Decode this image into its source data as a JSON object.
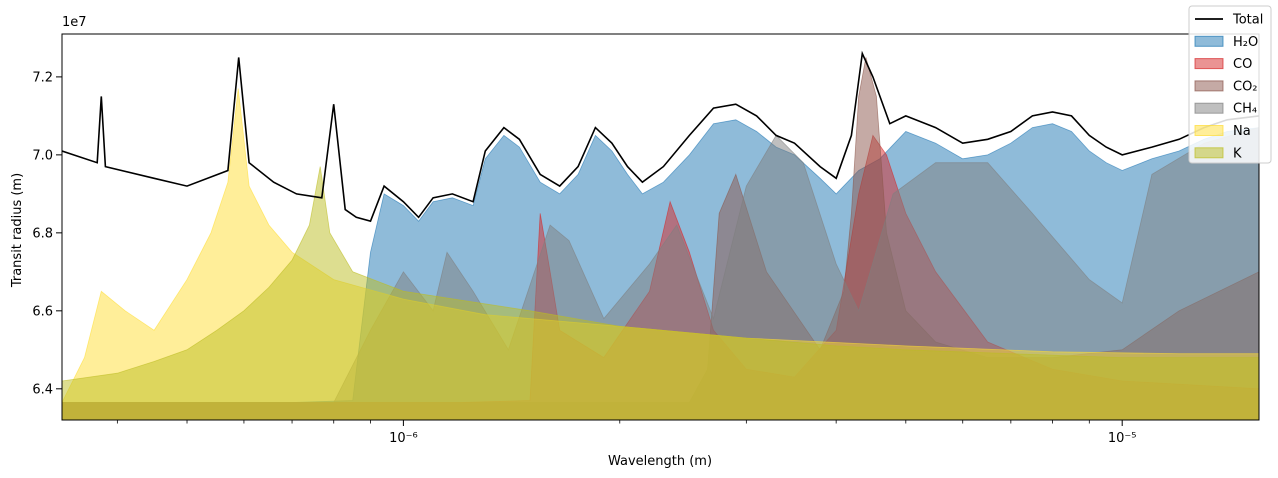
{
  "chart_data": {
    "type": "area",
    "xlabel": "Wavelength (m)",
    "ylabel": "Transit radius (m)",
    "y_offset_text": "1e7",
    "xscale": "log",
    "xlim": [
      3.35e-07,
      1.55e-05
    ],
    "ylim": [
      63200000,
      73100000
    ],
    "x_ticks": [
      1e-06,
      1e-05
    ],
    "x_tick_labels": [
      "10⁻⁶",
      "10⁻⁵"
    ],
    "y_ticks": [
      64000000,
      66000000,
      68000000,
      70000000,
      72000000
    ],
    "y_tick_labels": [
      "6.4",
      "6.6",
      "6.8",
      "7.0",
      "7.2"
    ],
    "grid": false,
    "legend_position": "top-right",
    "series": [
      {
        "name": "Total",
        "kind": "line",
        "color": "#000000",
        "x": [
          3.35e-07,
          3.75e-07,
          3.8e-07,
          3.85e-07,
          4.5e-07,
          5e-07,
          5.7e-07,
          5.9e-07,
          6.1e-07,
          6.6e-07,
          7.1e-07,
          7.7e-07,
          8e-07,
          8.3e-07,
          8.6e-07,
          9e-07,
          9.4e-07,
          1e-06,
          1.05e-06,
          1.1e-06,
          1.17e-06,
          1.25e-06,
          1.3e-06,
          1.38e-06,
          1.45e-06,
          1.55e-06,
          1.65e-06,
          1.75e-06,
          1.85e-06,
          1.95e-06,
          2.05e-06,
          2.15e-06,
          2.3e-06,
          2.5e-06,
          2.7e-06,
          2.9e-06,
          3.1e-06,
          3.3e-06,
          3.5e-06,
          3.8e-06,
          4e-06,
          4.2e-06,
          4.35e-06,
          4.5e-06,
          4.75e-06,
          5e-06,
          5.5e-06,
          6e-06,
          6.5e-06,
          7e-06,
          7.5e-06,
          8e-06,
          8.5e-06,
          9e-06,
          9.5e-06,
          1e-05,
          1.1e-05,
          1.2e-05,
          1.3e-05,
          1.4e-05,
          1.55e-05
        ],
        "y": [
          70100000,
          69800000,
          71500000,
          69700000,
          69400000,
          69200000,
          69600000,
          72500000,
          69800000,
          69300000,
          69000000,
          68900000,
          71300000,
          68600000,
          68400000,
          68300000,
          69200000,
          68800000,
          68400000,
          68900000,
          69000000,
          68800000,
          70100000,
          70700000,
          70400000,
          69500000,
          69200000,
          69700000,
          70700000,
          70300000,
          69700000,
          69300000,
          69700000,
          70500000,
          71200000,
          71300000,
          71000000,
          70500000,
          70300000,
          69700000,
          69400000,
          70500000,
          72600000,
          72000000,
          70800000,
          71000000,
          70700000,
          70300000,
          70400000,
          70600000,
          71000000,
          71100000,
          71000000,
          70500000,
          70200000,
          70000000,
          70200000,
          70400000,
          70700000,
          70900000,
          71000000
        ]
      },
      {
        "name": "H₂O",
        "kind": "area",
        "color": "#1f77b4",
        "x": [
          3.35e-07,
          5e-07,
          7e-07,
          8.5e-07,
          9e-07,
          9.4e-07,
          1e-06,
          1.05e-06,
          1.1e-06,
          1.17e-06,
          1.25e-06,
          1.3e-06,
          1.38e-06,
          1.45e-06,
          1.55e-06,
          1.65e-06,
          1.75e-06,
          1.85e-06,
          1.95e-06,
          2.05e-06,
          2.15e-06,
          2.3e-06,
          2.5e-06,
          2.7e-06,
          2.9e-06,
          3.1e-06,
          3.3e-06,
          3.5e-06,
          3.8e-06,
          4e-06,
          4.3e-06,
          4.6e-06,
          5e-06,
          5.5e-06,
          6e-06,
          6.5e-06,
          7e-06,
          7.5e-06,
          8e-06,
          8.5e-06,
          9e-06,
          9.5e-06,
          1e-05,
          1.1e-05,
          1.2e-05,
          1.3e-05,
          1.4e-05,
          1.55e-05
        ],
        "y": [
          63650000,
          63650000,
          63650000,
          63700000,
          67500000,
          69000000,
          68700000,
          68300000,
          68800000,
          68900000,
          68700000,
          69900000,
          70500000,
          70200000,
          69300000,
          69000000,
          69500000,
          70500000,
          70100000,
          69500000,
          69000000,
          69300000,
          70000000,
          70800000,
          70900000,
          70600000,
          70200000,
          70000000,
          69400000,
          69000000,
          69600000,
          69900000,
          70600000,
          70300000,
          69900000,
          70000000,
          70300000,
          70700000,
          70800000,
          70600000,
          70100000,
          69800000,
          69600000,
          69900000,
          70100000,
          70400000,
          70600000,
          70700000
        ]
      },
      {
        "name": "CO",
        "kind": "area",
        "color": "#d62728",
        "x": [
          3.35e-07,
          1.2e-06,
          1.5e-06,
          1.55e-06,
          1.6e-06,
          1.65e-06,
          1.9e-06,
          2.2e-06,
          2.35e-06,
          2.5e-06,
          2.7e-06,
          3e-06,
          3.5e-06,
          4e-06,
          4.3e-06,
          4.5e-06,
          4.7e-06,
          5e-06,
          5.5e-06,
          6.5e-06,
          8e-06,
          1e-05,
          1.55e-05
        ],
        "y": [
          63650000,
          63650000,
          63700000,
          68500000,
          67000000,
          65500000,
          64800000,
          66500000,
          68800000,
          67500000,
          65500000,
          64500000,
          64300000,
          65500000,
          69000000,
          70500000,
          70000000,
          68500000,
          67000000,
          65200000,
          64500000,
          64200000,
          64000000
        ]
      },
      {
        "name": "CO₂",
        "kind": "area",
        "color": "#8c564b",
        "x": [
          3.35e-07,
          2.5e-06,
          2.65e-06,
          2.75e-06,
          2.9e-06,
          3.2e-06,
          3.8e-06,
          4.1e-06,
          4.2e-06,
          4.3e-06,
          4.4e-06,
          4.55e-06,
          4.7e-06,
          5e-06,
          5.5e-06,
          6.5e-06,
          8e-06,
          1e-05,
          1.2e-05,
          1.55e-05
        ],
        "y": [
          63650000,
          63650000,
          64500000,
          68500000,
          69500000,
          67000000,
          65000000,
          66500000,
          68500000,
          71500000,
          72500000,
          71500000,
          68000000,
          66000000,
          65200000,
          64800000,
          64800000,
          65000000,
          66000000,
          67000000
        ]
      },
      {
        "name": "CH₄",
        "kind": "area",
        "color": "#7f7f7f",
        "x": [
          3.35e-07,
          8e-07,
          9e-07,
          1e-06,
          1.1e-06,
          1.15e-06,
          1.25e-06,
          1.4e-06,
          1.6e-06,
          1.7e-06,
          1.9e-06,
          2.2e-06,
          2.4e-06,
          2.7e-06,
          3e-06,
          3.3e-06,
          3.6e-06,
          4e-06,
          4.3e-06,
          4.8e-06,
          5.5e-06,
          6.5e-06,
          7.5e-06,
          9e-06,
          1e-05,
          1.1e-05,
          1.3e-05,
          1.55e-05
        ],
        "y": [
          63650000,
          63650000,
          65500000,
          67000000,
          66000000,
          67500000,
          66500000,
          65000000,
          68200000,
          67800000,
          65800000,
          67200000,
          68200000,
          65800000,
          69200000,
          70500000,
          69800000,
          67200000,
          66000000,
          69000000,
          69800000,
          69800000,
          68500000,
          66800000,
          66200000,
          69500000,
          70300000,
          70700000
        ]
      },
      {
        "name": "Na",
        "kind": "area",
        "color": "#ffdd33",
        "x": [
          3.35e-07,
          3.6e-07,
          3.8e-07,
          4.1e-07,
          4.5e-07,
          5e-07,
          5.4e-07,
          5.7e-07,
          5.89e-07,
          6.1e-07,
          6.5e-07,
          7e-07,
          8e-07,
          1e-06,
          1.3e-06,
          2e-06,
          3e-06,
          5e-06,
          8e-06,
          1.2e-05,
          1.55e-05
        ],
        "y": [
          63650000,
          64800000,
          66500000,
          66000000,
          65500000,
          66800000,
          68000000,
          69300000,
          71700000,
          69200000,
          68200000,
          67500000,
          66800000,
          66300000,
          65900000,
          65600000,
          65300000,
          65100000,
          64950000,
          64900000,
          64900000
        ]
      },
      {
        "name": "K",
        "kind": "area",
        "color": "#bcbd22",
        "x": [
          3.35e-07,
          4e-07,
          4.5e-07,
          5e-07,
          5.5e-07,
          6e-07,
          6.5e-07,
          7e-07,
          7.4e-07,
          7.66e-07,
          7.9e-07,
          8.5e-07,
          1e-06,
          1.5e-06,
          2e-06,
          3e-06,
          4e-06,
          5e-06,
          7e-06,
          1e-05,
          1.55e-05
        ],
        "y": [
          64200000,
          64400000,
          64700000,
          65000000,
          65500000,
          66000000,
          66600000,
          67300000,
          68200000,
          69700000,
          68000000,
          67000000,
          66500000,
          66000000,
          65600000,
          65300000,
          65100000,
          65000000,
          64900000,
          64800000,
          64800000
        ]
      }
    ]
  }
}
